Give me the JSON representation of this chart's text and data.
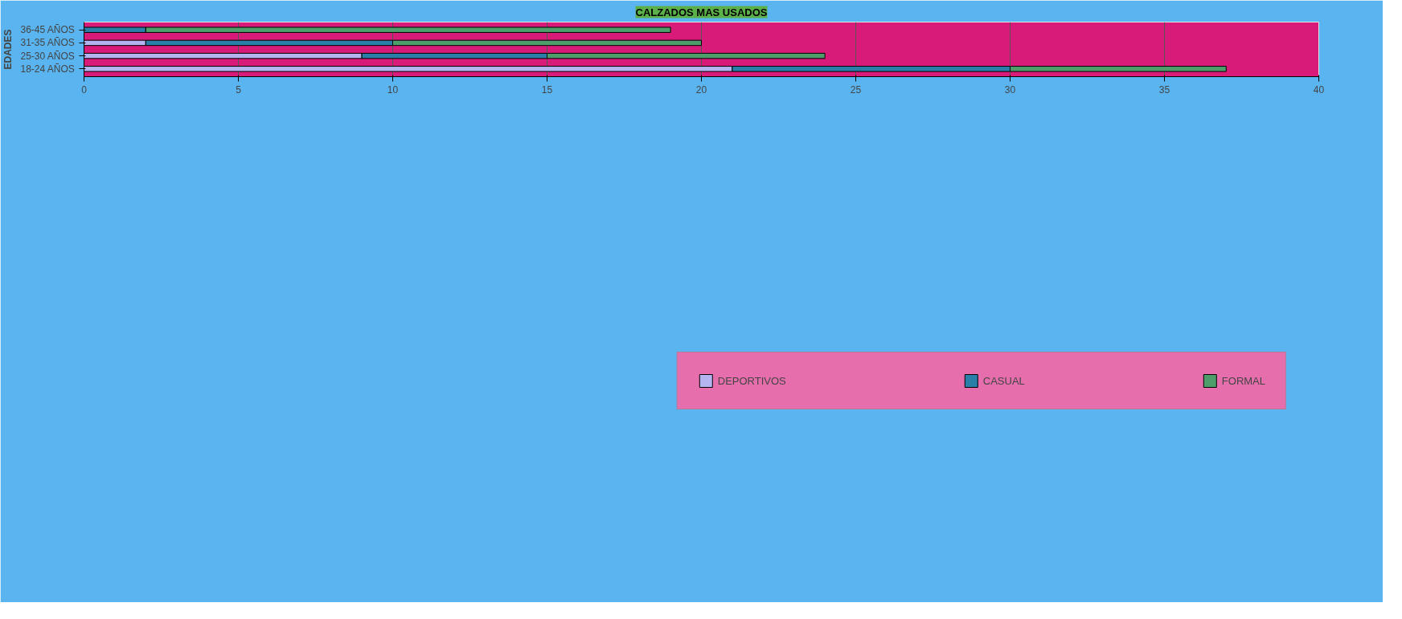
{
  "chart_data": {
    "type": "bar",
    "orientation": "horizontal",
    "stacked": true,
    "title": "CALZADOS MAS USADOS",
    "ylabel": "EDADES",
    "categories": [
      "36-45 AÑOS",
      "31-35 AÑOS",
      "25-30 AÑOS",
      "18-24 AÑOS"
    ],
    "series": [
      {
        "name": "DEPORTIVOS",
        "color": "#b4b4f0",
        "values": [
          0,
          2,
          9,
          21
        ]
      },
      {
        "name": "CASUAL",
        "color": "#2a7fa8",
        "values": [
          2,
          8,
          6,
          9
        ]
      },
      {
        "name": "FORMAL",
        "color": "#4e9e6c",
        "values": [
          17,
          10,
          9,
          7
        ]
      }
    ],
    "xlim": [
      0,
      40
    ],
    "xticks": [
      0,
      5,
      10,
      15,
      20,
      25,
      30,
      35,
      40
    ],
    "grid": "x",
    "legend": "bottom"
  }
}
